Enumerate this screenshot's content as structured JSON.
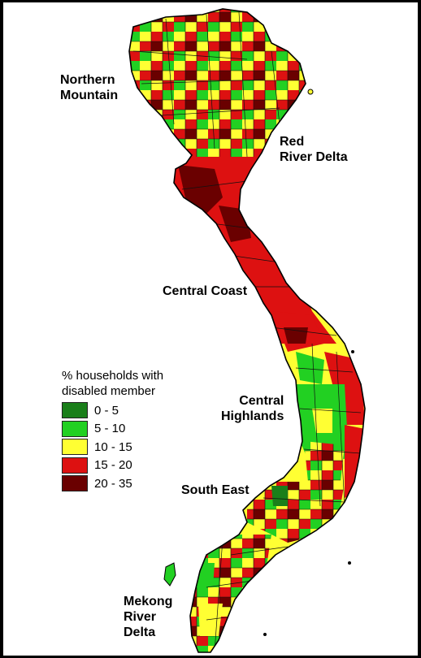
{
  "legend": {
    "title_line1": "% households with",
    "title_line2": "disabled member",
    "items": [
      {
        "label": "0 - 5",
        "color": "#1a7f1a"
      },
      {
        "label": "5 - 10",
        "color": "#22d022"
      },
      {
        "label": "10 - 15",
        "color": "#ffff33"
      },
      {
        "label": "15 - 20",
        "color": "#dd1111"
      },
      {
        "label": "20 - 35",
        "color": "#6a0000"
      }
    ]
  },
  "regions": {
    "northern_mountain_line1": "Northern",
    "northern_mountain_line2": "Mountain",
    "red_river_delta_line1": "Red",
    "red_river_delta_line2": "River Delta",
    "central_coast": "Central Coast",
    "central_highlands_line1": "Central",
    "central_highlands_line2": "Highlands",
    "south_east": "South East",
    "mekong_line1": "Mekong",
    "mekong_line2": "River",
    "mekong_line3": "Delta"
  }
}
